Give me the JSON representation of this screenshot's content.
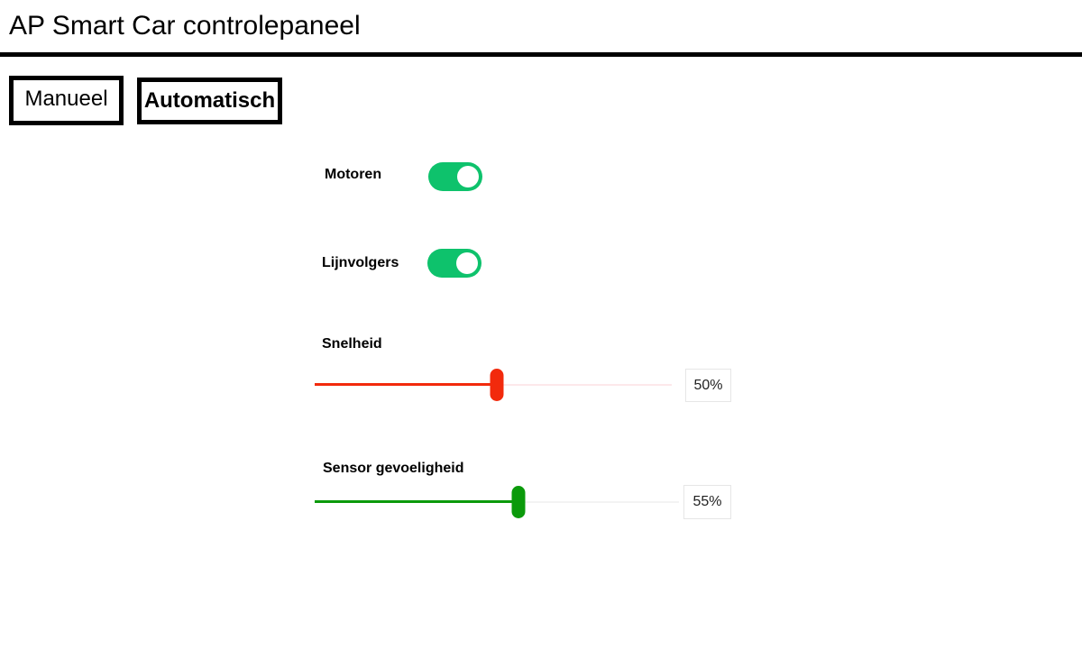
{
  "header": {
    "title": "AP Smart Car controlepaneel"
  },
  "modes": {
    "manual_label": "Manueel",
    "auto_label": "Automatisch"
  },
  "controls": {
    "motors": {
      "label": "Motoren",
      "on": true,
      "color": "#0ec26c"
    },
    "line_followers": {
      "label": "Lijnvolgers",
      "on": true,
      "color": "#0ec26c"
    },
    "speed": {
      "label": "Snelheid",
      "value": 50,
      "display": "50%",
      "color": "#f22a0c",
      "track_color": "#fde8ea"
    },
    "sensor_sensitivity": {
      "label": "Sensor gevoeligheid",
      "value": 55,
      "display": "55%",
      "color": "#0b9a0b",
      "track_color": "#f3f3f3"
    }
  }
}
